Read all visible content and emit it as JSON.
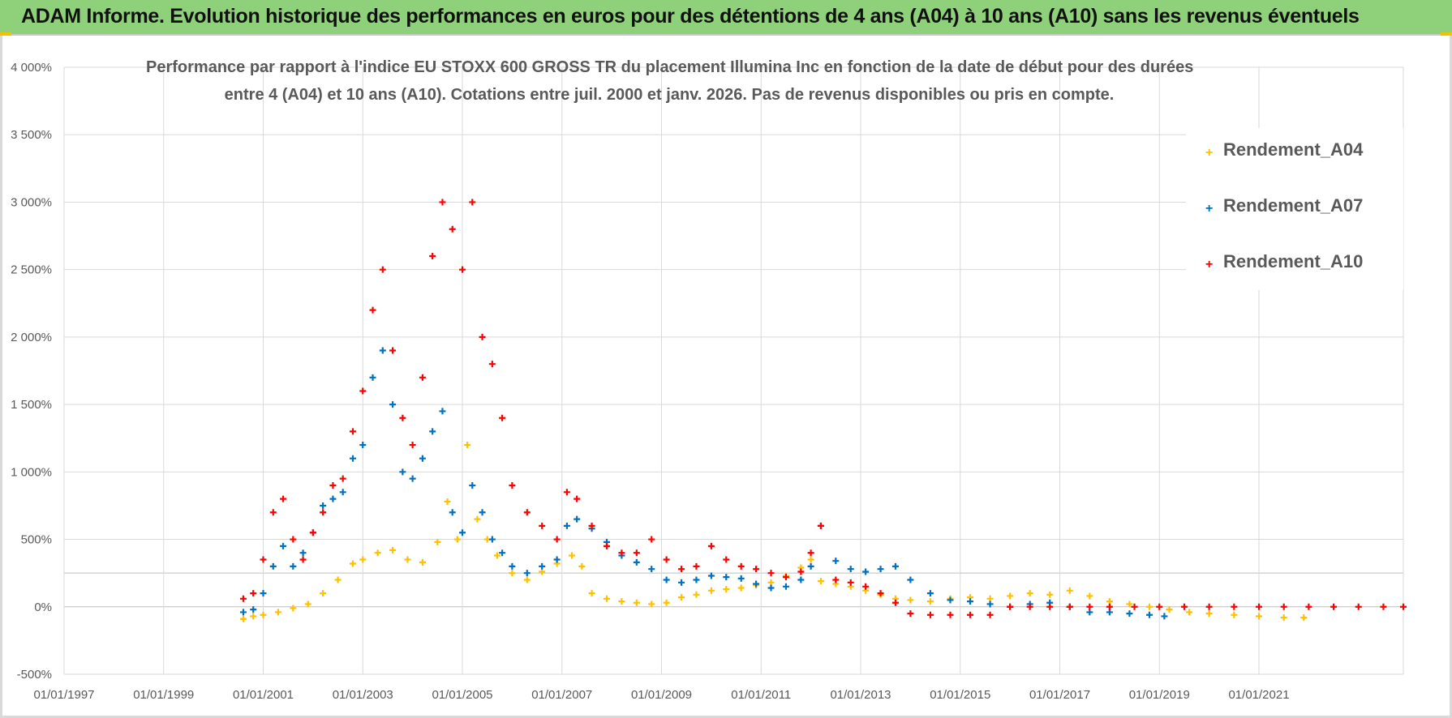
{
  "banner": {
    "title": "ADAM Informe. Evolution historique des performances en euros pour des détentions de 4 ans (A04) à 10 ans (A10) sans les revenus éventuels"
  },
  "chart_data": {
    "type": "scatter",
    "title_line1": "Performance par rapport à l'indice EU STOXX 600 GROSS TR  du placement Illumina Inc en fonction de la date de début pour des durées",
    "title_line2": "entre 4 (A04) et 10 ans (A10). Cotations entre juil. 2000 et janv. 2026. Pas de revenus disponibles ou pris en compte.",
    "xlabel": "",
    "ylabel": "",
    "xlim": [
      1997.0,
      2023.9
    ],
    "ylim": [
      -500,
      4000
    ],
    "y_ticks": [
      -500,
      0,
      500,
      1000,
      1500,
      2000,
      2500,
      3000,
      3500,
      4000
    ],
    "y_tick_labels": [
      "-500%",
      "0%",
      "500%",
      "1 000%",
      "1 500%",
      "2 000%",
      "2 500%",
      "3 000%",
      "3 500%",
      "4 000%"
    ],
    "x_ticks": [
      1997,
      1999,
      2001,
      2003,
      2005,
      2007,
      2009,
      2011,
      2013,
      2015,
      2017,
      2019,
      2021
    ],
    "x_tick_labels": [
      "01/01/1997",
      "01/01/1999",
      "01/01/2001",
      "01/01/2003",
      "01/01/2005",
      "01/01/2007",
      "01/01/2009",
      "01/01/2011",
      "01/01/2013",
      "01/01/2015",
      "01/01/2017",
      "01/01/2019",
      "01/01/2021"
    ],
    "legend_position": "top-right",
    "marker": "+",
    "series": [
      {
        "name": "Rendement_A04",
        "color": "#ffc000",
        "x": [
          2000.6,
          2000.8,
          2001.0,
          2001.3,
          2001.6,
          2001.9,
          2002.2,
          2002.5,
          2002.8,
          2003.0,
          2003.3,
          2003.6,
          2003.9,
          2004.2,
          2004.5,
          2004.7,
          2004.9,
          2005.1,
          2005.3,
          2005.5,
          2005.7,
          2006.0,
          2006.3,
          2006.6,
          2006.9,
          2007.2,
          2007.4,
          2007.6,
          2007.9,
          2008.2,
          2008.5,
          2008.8,
          2009.1,
          2009.4,
          2009.7,
          2010.0,
          2010.3,
          2010.6,
          2010.9,
          2011.2,
          2011.5,
          2011.8,
          2012.0,
          2012.2,
          2012.5,
          2012.8,
          2013.1,
          2013.4,
          2013.7,
          2014.0,
          2014.4,
          2014.8,
          2015.2,
          2015.6,
          2016.0,
          2016.4,
          2016.8,
          2017.2,
          2017.6,
          2018.0,
          2018.4,
          2018.8,
          2019.2,
          2019.6,
          2020.0,
          2020.5,
          2021.0,
          2021.5,
          2021.9
        ],
        "y": [
          -90,
          -70,
          -60,
          -40,
          -10,
          20,
          100,
          200,
          320,
          350,
          400,
          420,
          350,
          330,
          480,
          780,
          500,
          1200,
          650,
          500,
          380,
          250,
          200,
          260,
          320,
          380,
          300,
          100,
          60,
          40,
          30,
          20,
          30,
          70,
          90,
          120,
          130,
          140,
          160,
          180,
          230,
          290,
          350,
          190,
          170,
          150,
          120,
          90,
          60,
          50,
          40,
          60,
          70,
          60,
          80,
          100,
          90,
          120,
          80,
          40,
          20,
          0,
          -20,
          -40,
          -50,
          -60,
          -70,
          -80,
          -80
        ]
      },
      {
        "name": "Rendement_A07",
        "color": "#0070c0",
        "x": [
          2000.6,
          2000.8,
          2001.0,
          2001.2,
          2001.4,
          2001.6,
          2001.8,
          2002.0,
          2002.2,
          2002.4,
          2002.6,
          2002.8,
          2003.0,
          2003.2,
          2003.4,
          2003.6,
          2003.8,
          2004.0,
          2004.2,
          2004.4,
          2004.6,
          2004.8,
          2005.0,
          2005.2,
          2005.4,
          2005.6,
          2005.8,
          2006.0,
          2006.3,
          2006.6,
          2006.9,
          2007.1,
          2007.3,
          2007.6,
          2007.9,
          2008.2,
          2008.5,
          2008.8,
          2009.1,
          2009.4,
          2009.7,
          2010.0,
          2010.3,
          2010.6,
          2010.9,
          2011.2,
          2011.5,
          2011.8,
          2012.0,
          2012.2,
          2012.5,
          2012.8,
          2013.1,
          2013.4,
          2013.7,
          2014.0,
          2014.4,
          2014.8,
          2015.2,
          2015.6,
          2016.0,
          2016.4,
          2016.8,
          2017.2,
          2017.6,
          2018.0,
          2018.4,
          2018.8,
          2019.1
        ],
        "y": [
          -40,
          -20,
          100,
          300,
          450,
          300,
          400,
          550,
          750,
          800,
          850,
          1100,
          1200,
          1700,
          1900,
          1500,
          1000,
          950,
          1100,
          1300,
          1450,
          700,
          550,
          900,
          700,
          500,
          400,
          300,
          250,
          300,
          350,
          600,
          650,
          580,
          480,
          380,
          330,
          280,
          200,
          180,
          200,
          230,
          220,
          210,
          170,
          140,
          150,
          200,
          300,
          600,
          340,
          280,
          260,
          280,
          300,
          200,
          100,
          50,
          40,
          20,
          0,
          20,
          30,
          0,
          -40,
          -40,
          -50,
          -60,
          -70
        ]
      },
      {
        "name": "Rendement_A10",
        "color": "#ff0000",
        "x": [
          2000.6,
          2000.8,
          2001.0,
          2001.2,
          2001.4,
          2001.6,
          2001.8,
          2002.0,
          2002.2,
          2002.4,
          2002.6,
          2002.8,
          2003.0,
          2003.2,
          2003.4,
          2003.6,
          2003.8,
          2004.0,
          2004.2,
          2004.4,
          2004.6,
          2004.8,
          2005.0,
          2005.2,
          2005.4,
          2005.6,
          2005.8,
          2006.0,
          2006.3,
          2006.6,
          2006.9,
          2007.1,
          2007.3,
          2007.6,
          2007.9,
          2008.2,
          2008.5,
          2008.8,
          2009.1,
          2009.4,
          2009.7,
          2010.0,
          2010.3,
          2010.6,
          2010.9,
          2011.2,
          2011.5,
          2011.8,
          2012.0,
          2012.2,
          2012.5,
          2012.8,
          2013.1,
          2013.4,
          2013.7,
          2014.0,
          2014.4,
          2014.8,
          2015.2,
          2015.6,
          2016.0,
          2016.4,
          2016.8,
          2017.2,
          2017.6,
          2018.0,
          2018.5,
          2019.0,
          2019.5,
          2020.0,
          2020.5,
          2021.0,
          2021.5,
          2022.0,
          2022.5,
          2023.0,
          2023.5,
          2023.9
        ],
        "y": [
          60,
          100,
          350,
          700,
          800,
          500,
          350,
          550,
          700,
          900,
          950,
          1300,
          1600,
          2200,
          2500,
          1900,
          1400,
          1200,
          1700,
          2600,
          3000,
          2800,
          2500,
          3000,
          2000,
          1800,
          1400,
          900,
          700,
          600,
          500,
          850,
          800,
          600,
          450,
          400,
          400,
          500,
          350,
          280,
          300,
          450,
          350,
          300,
          280,
          250,
          220,
          260,
          400,
          600,
          200,
          180,
          150,
          100,
          30,
          -50,
          -60,
          -60,
          -60,
          -60,
          0,
          0,
          0,
          0,
          0,
          0,
          0,
          0,
          0,
          0,
          0,
          0,
          0,
          0,
          0,
          0,
          0,
          0
        ]
      }
    ]
  }
}
